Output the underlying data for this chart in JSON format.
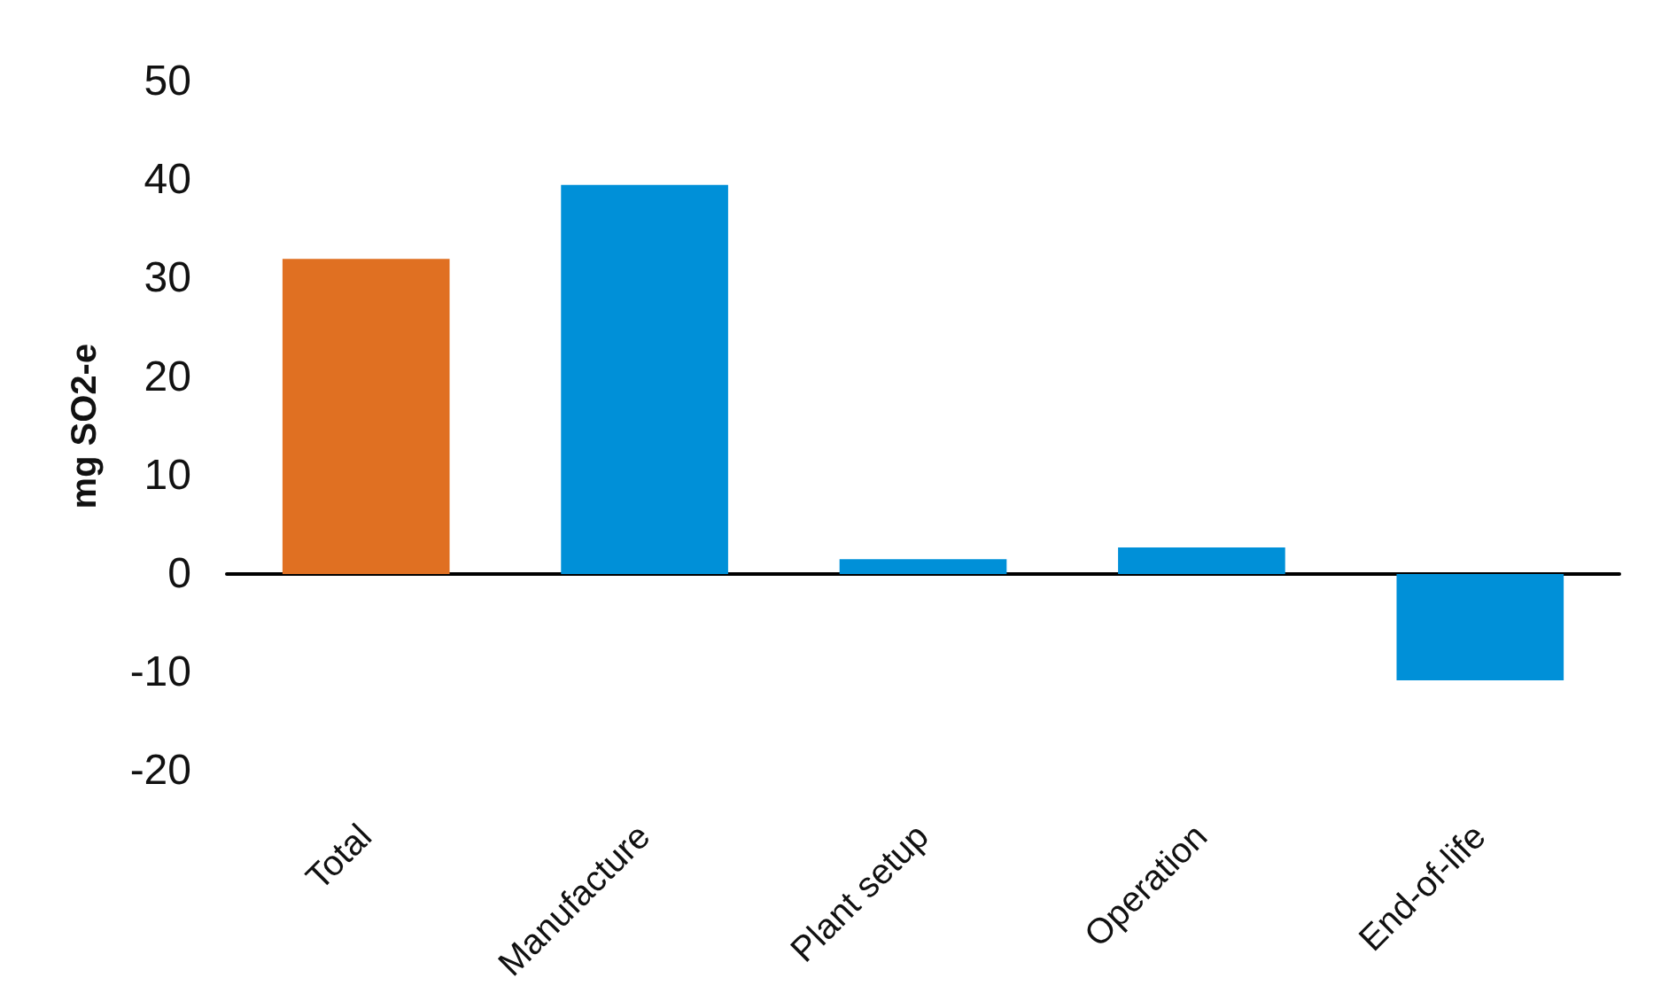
{
  "chart_data": {
    "type": "bar",
    "ylabel": "mg SO2-e",
    "categories": [
      "Total",
      "Manufacture",
      "Plant setup",
      "Operation",
      "End-of-life"
    ],
    "values": [
      32,
      39.5,
      1.5,
      2.7,
      -10.8
    ],
    "colors": [
      "#e07022",
      "#0090d8",
      "#0090d8",
      "#0090d8",
      "#0090d8"
    ],
    "ylim": [
      -20,
      50
    ],
    "yticks": [
      -20,
      -10,
      0,
      10,
      20,
      30,
      40,
      50
    ]
  }
}
